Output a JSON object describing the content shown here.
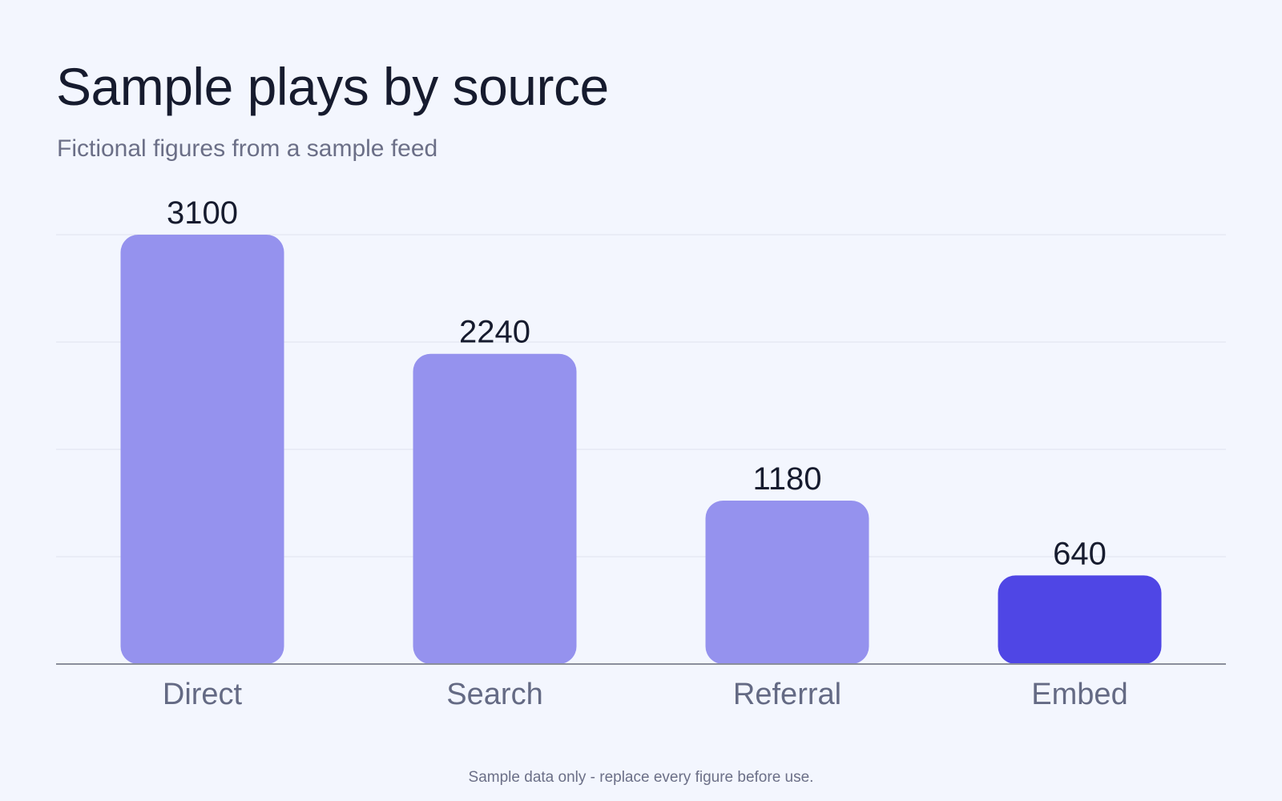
{
  "title": "Sample plays by source",
  "subtitle": "Fictional figures from a sample feed",
  "footnote": "Sample data only - replace every figure before use.",
  "colors": {
    "background": "#f3f6fe",
    "bar": "#9592ee",
    "bar_highlight": "#4f46e5",
    "gridline": "#dfe3ee",
    "baseline": "#8a8e9c",
    "value_text": "#161b2e",
    "category_text": "#646a84"
  },
  "chart_data": {
    "type": "bar",
    "categories": [
      "Direct",
      "Search",
      "Referral",
      "Embed"
    ],
    "values": [
      3100,
      2240,
      1180,
      640
    ],
    "highlight_index": 3,
    "ylim": [
      0,
      3100
    ],
    "grid": true,
    "data_labels": true
  }
}
